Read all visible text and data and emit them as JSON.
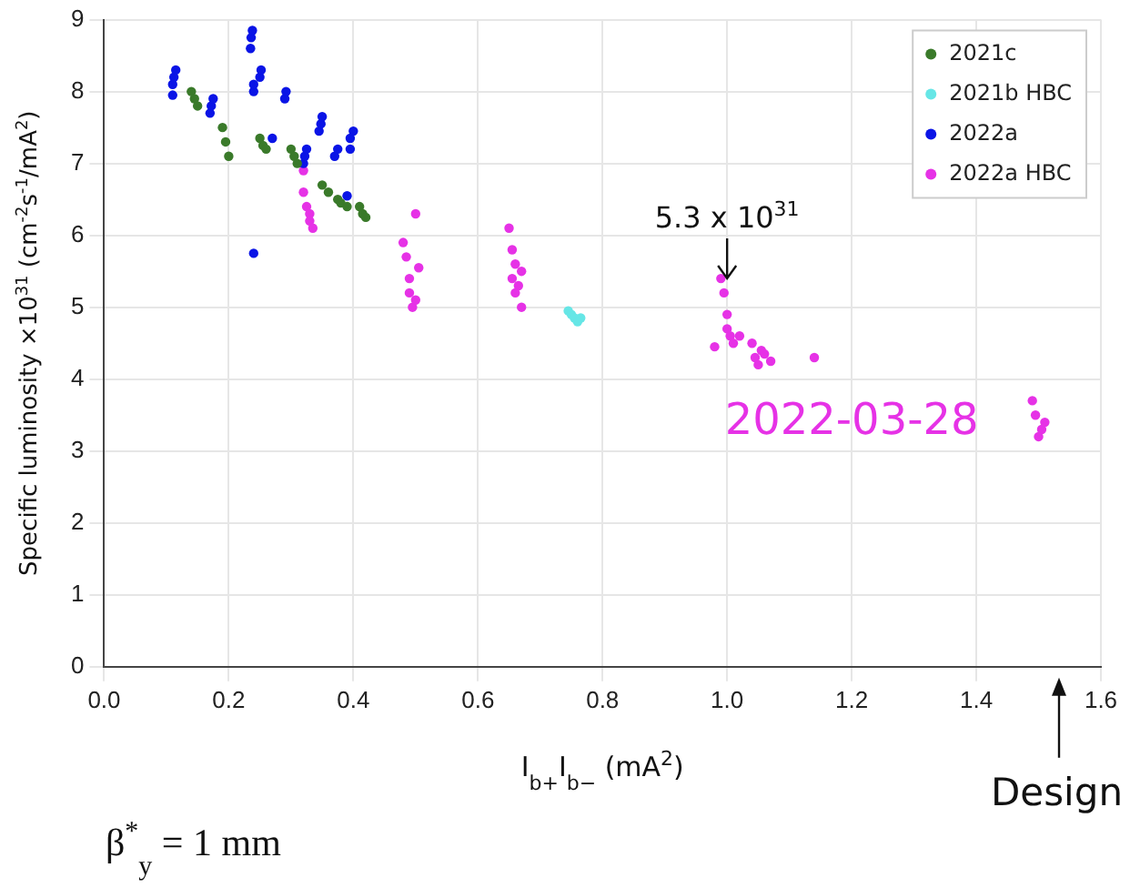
{
  "chart_data": {
    "type": "scatter",
    "ylabel": "Specific luminosity ×10$^{31}$ (cm$^{-2}$s$^{-1}$/mA$^{2}$)",
    "xlabel": "I$_{b+}$I$_{b−}$ (mA$^{2}$)",
    "xlim": [
      0,
      1.6
    ],
    "ylim": [
      0,
      9
    ],
    "xticks": [
      {
        "value": 0,
        "label": "0.0"
      },
      {
        "value": 0.2,
        "label": "0.2"
      },
      {
        "value": 0.4,
        "label": "0.4"
      },
      {
        "value": 0.6,
        "label": "0.6"
      },
      {
        "value": 0.8,
        "label": "0.8"
      },
      {
        "value": 1,
        "label": "1.0"
      },
      {
        "value": 1.2,
        "label": "1.2"
      },
      {
        "value": 1.4,
        "label": "1.4"
      },
      {
        "value": 1.6,
        "label": "1.6"
      }
    ],
    "yticks": [
      0,
      1,
      2,
      3,
      4,
      5,
      6,
      7,
      8,
      9
    ],
    "grid": true,
    "legend": "top right",
    "marker": "circle",
    "series": [
      {
        "name": "2021c",
        "color": "#3a7a2a",
        "x": [
          0.14,
          0.145,
          0.15,
          0.19,
          0.195,
          0.2,
          0.25,
          0.255,
          0.26,
          0.3,
          0.305,
          0.31,
          0.35,
          0.36,
          0.375,
          0.38,
          0.39,
          0.41,
          0.415,
          0.42
        ],
        "values": [
          8.0,
          7.9,
          7.8,
          7.5,
          7.3,
          7.1,
          7.35,
          7.25,
          7.2,
          7.2,
          7.1,
          7.0,
          6.7,
          6.6,
          6.5,
          6.45,
          6.4,
          6.4,
          6.3,
          6.25
        ]
      },
      {
        "name": "2021b HBC",
        "color": "#66e6e6",
        "x": [
          0.745,
          0.75,
          0.755,
          0.76,
          0.765
        ],
        "values": [
          4.95,
          4.9,
          4.85,
          4.8,
          4.85
        ]
      },
      {
        "name": "2022a",
        "color": "#0a14e6",
        "x": [
          0.11,
          0.11,
          0.112,
          0.115,
          0.17,
          0.172,
          0.175,
          0.235,
          0.236,
          0.238,
          0.24,
          0.24,
          0.25,
          0.252,
          0.24,
          0.27,
          0.29,
          0.292,
          0.32,
          0.322,
          0.325,
          0.345,
          0.348,
          0.35,
          0.37,
          0.375,
          0.39,
          0.395,
          0.395,
          0.4
        ],
        "values": [
          7.95,
          8.1,
          8.2,
          8.3,
          7.7,
          7.8,
          7.9,
          8.6,
          8.75,
          8.85,
          8.0,
          8.1,
          8.2,
          8.3,
          5.75,
          7.35,
          7.9,
          8.0,
          7.0,
          7.1,
          7.2,
          7.45,
          7.55,
          7.65,
          7.1,
          7.2,
          6.55,
          7.2,
          7.35,
          7.45
        ]
      },
      {
        "name": "2022a HBC",
        "color": "#e632e6",
        "x": [
          0.32,
          0.32,
          0.325,
          0.33,
          0.33,
          0.335,
          0.48,
          0.485,
          0.49,
          0.49,
          0.495,
          0.5,
          0.5,
          0.505,
          0.65,
          0.655,
          0.66,
          0.665,
          0.67,
          0.66,
          0.655,
          0.67,
          0.99,
          0.995,
          1.0,
          1.0,
          1.005,
          1.01,
          0.98,
          1.02,
          1.04,
          1.045,
          1.05,
          1.055,
          1.06,
          1.07,
          1.14,
          1.49,
          1.495,
          1.505,
          1.51,
          1.5
        ],
        "values": [
          6.9,
          6.6,
          6.4,
          6.2,
          6.3,
          6.1,
          5.9,
          5.7,
          5.4,
          5.2,
          5.0,
          5.1,
          6.3,
          5.55,
          6.1,
          5.8,
          5.6,
          5.3,
          5.0,
          5.2,
          5.4,
          5.5,
          5.4,
          5.2,
          4.9,
          4.7,
          4.6,
          4.5,
          4.45,
          4.6,
          4.5,
          4.3,
          4.2,
          4.4,
          4.35,
          4.25,
          4.3,
          3.7,
          3.5,
          3.3,
          3.4,
          3.2
        ]
      }
    ],
    "annotations": [
      {
        "text": "5.3 x 10$^{31}$",
        "x": 1.0,
        "y": 5.3
      },
      "Design",
      "2022-03-28",
      "β$^{*}$$_{y}$ = 1 mm"
    ]
  }
}
